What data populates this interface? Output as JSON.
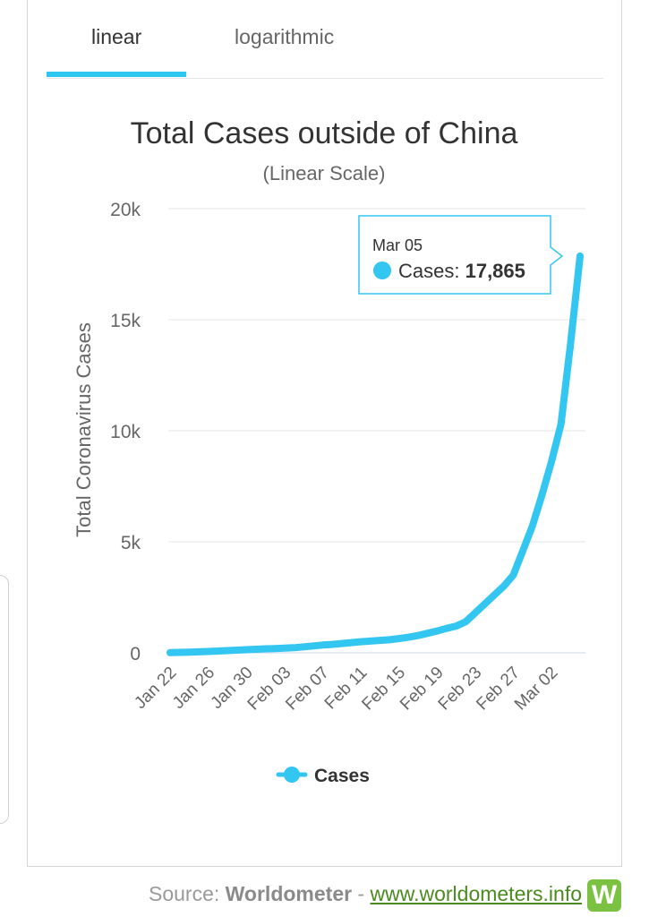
{
  "tabs": [
    {
      "label": "linear",
      "active": true
    },
    {
      "label": "logarithmic",
      "active": false
    }
  ],
  "footer": {
    "prefix": "Source: ",
    "brand": "Worldometer",
    "separator": " - ",
    "link_text": "www.worldometers.info",
    "logo_letter": "W"
  },
  "tooltip": {
    "date": "Mar 05",
    "label": "Cases: ",
    "value": "17,865"
  },
  "colors": {
    "series": "#33c6f0",
    "tab_indicator": "#2ec7ef",
    "logo": "#7cc242"
  },
  "chart_data": {
    "type": "line",
    "title": "Total Cases outside of China",
    "subtitle": "(Linear Scale)",
    "ylabel": "Total Coronavirus Cases",
    "xlabel": "",
    "ylim": [
      0,
      20000
    ],
    "y_ticks": [
      0,
      5000,
      10000,
      15000,
      20000
    ],
    "y_tick_labels": [
      "0",
      "5k",
      "10k",
      "15k",
      "20k"
    ],
    "x_tick_labels": [
      "Jan 22",
      "Jan 26",
      "Jan 30",
      "Feb 03",
      "Feb 07",
      "Feb 11",
      "Feb 15",
      "Feb 19",
      "Feb 23",
      "Feb 27",
      "Mar 02"
    ],
    "x_tick_every": 4,
    "grid": true,
    "legend": "bottom-center",
    "series": [
      {
        "name": "Cases",
        "x": [
          "Jan 22",
          "Jan 23",
          "Jan 24",
          "Jan 25",
          "Jan 26",
          "Jan 27",
          "Jan 28",
          "Jan 29",
          "Jan 30",
          "Jan 31",
          "Feb 01",
          "Feb 02",
          "Feb 03",
          "Feb 04",
          "Feb 05",
          "Feb 06",
          "Feb 07",
          "Feb 08",
          "Feb 09",
          "Feb 10",
          "Feb 11",
          "Feb 12",
          "Feb 13",
          "Feb 14",
          "Feb 15",
          "Feb 16",
          "Feb 17",
          "Feb 18",
          "Feb 19",
          "Feb 20",
          "Feb 21",
          "Feb 22",
          "Feb 23",
          "Feb 24",
          "Feb 25",
          "Feb 26",
          "Feb 27",
          "Feb 28",
          "Feb 29",
          "Mar 01",
          "Mar 02",
          "Mar 03",
          "Mar 04",
          "Mar 05"
        ],
        "values": [
          10,
          20,
          30,
          45,
          60,
          80,
          100,
          120,
          140,
          160,
          180,
          195,
          210,
          230,
          270,
          310,
          350,
          380,
          420,
          460,
          500,
          530,
          560,
          590,
          640,
          700,
          780,
          880,
          980,
          1100,
          1200,
          1400,
          1800,
          2200,
          2600,
          3000,
          3500,
          4600,
          5700,
          7100,
          8600,
          10300,
          13900,
          17865
        ]
      }
    ]
  }
}
